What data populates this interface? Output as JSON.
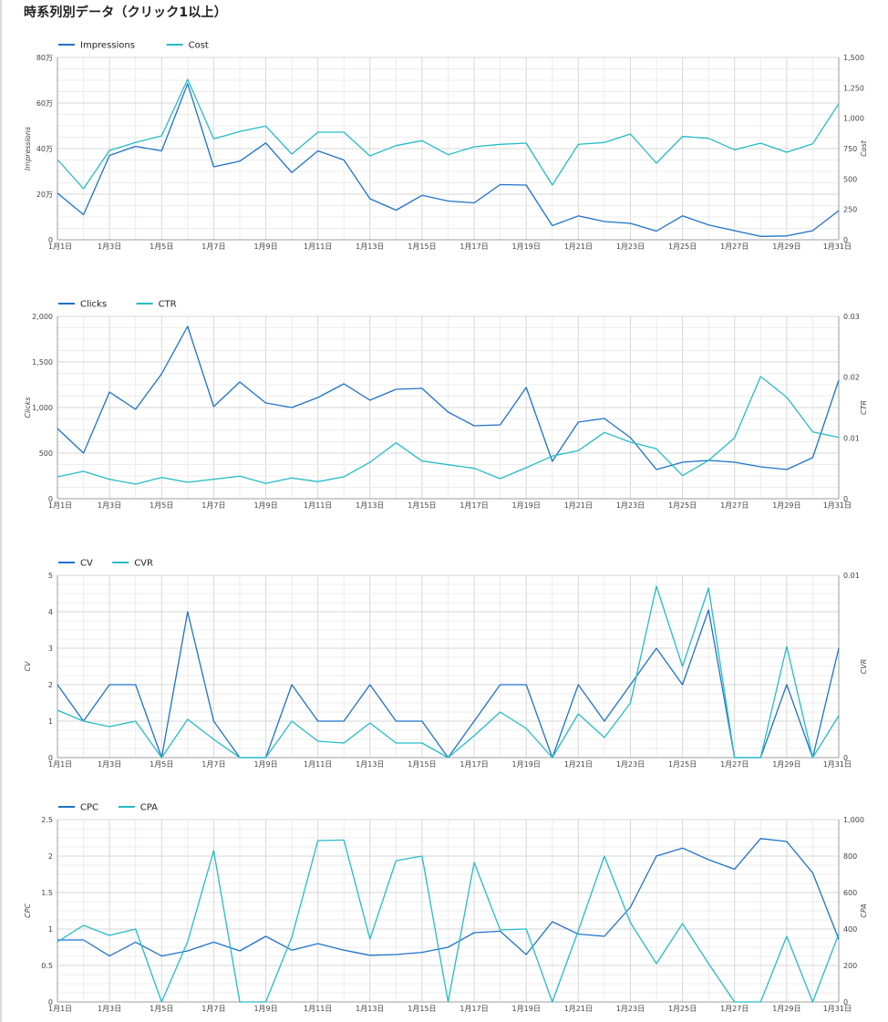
{
  "page": {
    "title": "時系列別データ（クリック1以上）"
  },
  "colors": {
    "series1": "#1f72c9",
    "series2": "#26bcc7",
    "grid_major": "#d7d7d7",
    "grid_minor": "#ececec",
    "axis": "#9e9e9e"
  },
  "chart_data": [
    {
      "type": "line",
      "x": [
        "1月1日",
        "1月2日",
        "1月3日",
        "1月4日",
        "1月5日",
        "1月6日",
        "1月7日",
        "1月8日",
        "1月9日",
        "1月10日",
        "1月11日",
        "1月12日",
        "1月13日",
        "1月14日",
        "1月15日",
        "1月16日",
        "1月17日",
        "1月18日",
        "1月19日",
        "1月20日",
        "1月21日",
        "1月22日",
        "1月23日",
        "1月24日",
        "1月25日",
        "1月26日",
        "1月27日",
        "1月28日",
        "1月29日",
        "1月30日",
        "1月31日"
      ],
      "x_tick_labels": [
        "1月1日",
        "1月3日",
        "1月5日",
        "1月7日",
        "1月9日",
        "1月11日",
        "1月13日",
        "1月15日",
        "1月17日",
        "1月19日",
        "1月21日",
        "1月23日",
        "1月25日",
        "1月27日",
        "1月29日",
        "1月31日"
      ],
      "left_axis": {
        "label": "Impressions",
        "range": [
          0,
          800000
        ],
        "tick_labels": [
          "0",
          "20万",
          "40万",
          "60万",
          "80万"
        ]
      },
      "right_axis": {
        "label": "Cost",
        "range": [
          0,
          1500
        ],
        "tick_labels": [
          "0",
          "250",
          "500",
          "750",
          "1,000",
          "1,250",
          "1,500"
        ]
      },
      "series": [
        {
          "name": "Impressions",
          "axis": "left",
          "color_key": "series1",
          "values": [
            205000,
            110000,
            370000,
            410000,
            390000,
            685000,
            320000,
            345000,
            425000,
            295000,
            390000,
            350000,
            180000,
            130000,
            195000,
            170000,
            162000,
            242000,
            240000,
            62000,
            105000,
            80000,
            72000,
            38000,
            105000,
            65000,
            40000,
            15000,
            17000,
            40000,
            128000
          ]
        },
        {
          "name": "Cost",
          "axis": "right",
          "color_key": "series2",
          "values": [
            660,
            420,
            735,
            800,
            855,
            1320,
            830,
            890,
            935,
            705,
            885,
            885,
            690,
            775,
            815,
            700,
            765,
            785,
            795,
            450,
            785,
            800,
            870,
            630,
            850,
            835,
            740,
            795,
            720,
            790,
            1120
          ]
        }
      ]
    },
    {
      "type": "line",
      "x": [
        "1月1日",
        "1月2日",
        "1月3日",
        "1月4日",
        "1月5日",
        "1月6日",
        "1月7日",
        "1月8日",
        "1月9日",
        "1月10日",
        "1月11日",
        "1月12日",
        "1月13日",
        "1月14日",
        "1月15日",
        "1月16日",
        "1月17日",
        "1月18日",
        "1月19日",
        "1月20日",
        "1月21日",
        "1月22日",
        "1月23日",
        "1月24日",
        "1月25日",
        "1月26日",
        "1月27日",
        "1月28日",
        "1月29日",
        "1月30日",
        "1月31日"
      ],
      "x_tick_labels": [
        "1月1日",
        "1月3日",
        "1月5日",
        "1月7日",
        "1月9日",
        "1月11日",
        "1月13日",
        "1月15日",
        "1月17日",
        "1月19日",
        "1月21日",
        "1月23日",
        "1月25日",
        "1月27日",
        "1月29日",
        "1月31日"
      ],
      "left_axis": {
        "label": "Clicks",
        "range": [
          0,
          2000
        ],
        "tick_labels": [
          "0",
          "500",
          "1,000",
          "1,500",
          "2,000"
        ]
      },
      "right_axis": {
        "label": "CTR",
        "range": [
          0,
          0.03
        ],
        "tick_labels": [
          "0",
          "0.01",
          "0.02",
          "0.03"
        ]
      },
      "series": [
        {
          "name": "Clicks",
          "axis": "left",
          "color_key": "series1",
          "values": [
            770,
            500,
            1170,
            980,
            1370,
            1890,
            1010,
            1280,
            1050,
            1000,
            1110,
            1260,
            1080,
            1200,
            1210,
            950,
            800,
            810,
            1220,
            410,
            840,
            880,
            670,
            320,
            400,
            420,
            400,
            350,
            320,
            450,
            1300
          ]
        },
        {
          "name": "CTR",
          "axis": "right",
          "color_key": "series2",
          "values": [
            0.0036,
            0.0045,
            0.0032,
            0.0024,
            0.0035,
            0.0027,
            0.0032,
            0.0037,
            0.0025,
            0.0034,
            0.0028,
            0.0036,
            0.006,
            0.0092,
            0.0062,
            0.0056,
            0.005,
            0.0033,
            0.0051,
            0.007,
            0.0079,
            0.0109,
            0.0093,
            0.0082,
            0.0038,
            0.0063,
            0.01,
            0.0201,
            0.0167,
            0.011,
            0.0101
          ]
        }
      ]
    },
    {
      "type": "line",
      "x": [
        "1月1日",
        "1月2日",
        "1月3日",
        "1月4日",
        "1月5日",
        "1月6日",
        "1月7日",
        "1月8日",
        "1月9日",
        "1月10日",
        "1月11日",
        "1月12日",
        "1月13日",
        "1月14日",
        "1月15日",
        "1月16日",
        "1月17日",
        "1月18日",
        "1月19日",
        "1月20日",
        "1月21日",
        "1月22日",
        "1月23日",
        "1月24日",
        "1月25日",
        "1月26日",
        "1月27日",
        "1月28日",
        "1月29日",
        "1月30日",
        "1月31日"
      ],
      "x_tick_labels": [
        "1月1日",
        "1月3日",
        "1月5日",
        "1月7日",
        "1月9日",
        "1月11日",
        "1月13日",
        "1月15日",
        "1月17日",
        "1月19日",
        "1月21日",
        "1月23日",
        "1月25日",
        "1月27日",
        "1月29日",
        "1月31日"
      ],
      "left_axis": {
        "label": "CV",
        "range": [
          0,
          5
        ],
        "tick_labels": [
          "0",
          "1",
          "2",
          "3",
          "4",
          "5"
        ]
      },
      "right_axis": {
        "label": "CVR",
        "range": [
          0,
          0.01
        ],
        "tick_labels": [
          "0",
          "0.01"
        ]
      },
      "series": [
        {
          "name": "CV",
          "axis": "left",
          "color_key": "series1",
          "values": [
            2,
            1,
            2,
            2,
            0,
            4,
            1,
            0,
            0,
            2,
            1,
            1,
            2,
            1,
            1,
            0,
            1,
            2,
            2,
            0,
            2,
            1,
            2,
            3,
            2,
            4.05,
            0,
            0,
            2,
            0,
            3
          ]
        },
        {
          "name": "CVR",
          "axis": "right",
          "color_key": "series2",
          "values": [
            0.0026,
            0.002,
            0.0017,
            0.002,
            0,
            0.0021,
            0.001,
            0,
            0,
            0.002,
            0.0009,
            0.0008,
            0.0019,
            0.0008,
            0.0008,
            0,
            0.0012,
            0.0025,
            0.0016,
            0,
            0.0024,
            0.0011,
            0.003,
            0.0094,
            0.005,
            0.0093,
            0,
            0,
            0.0061,
            0,
            0.0023
          ]
        }
      ]
    },
    {
      "type": "line",
      "x": [
        "1月1日",
        "1月2日",
        "1月3日",
        "1月4日",
        "1月5日",
        "1月6日",
        "1月7日",
        "1月8日",
        "1月9日",
        "1月10日",
        "1月11日",
        "1月12日",
        "1月13日",
        "1月14日",
        "1月15日",
        "1月16日",
        "1月17日",
        "1月18日",
        "1月19日",
        "1月20日",
        "1月21日",
        "1月22日",
        "1月23日",
        "1月24日",
        "1月25日",
        "1月26日",
        "1月27日",
        "1月28日",
        "1月29日",
        "1月30日",
        "1月31日"
      ],
      "x_tick_labels": [
        "1月1日",
        "1月3日",
        "1月5日",
        "1月7日",
        "1月9日",
        "1月11日",
        "1月13日",
        "1月15日",
        "1月17日",
        "1月19日",
        "1月21日",
        "1月23日",
        "1月25日",
        "1月27日",
        "1月29日",
        "1月31日"
      ],
      "left_axis": {
        "label": "CPC",
        "range": [
          0,
          2.5
        ],
        "tick_labels": [
          "0",
          "0.5",
          "1",
          "1.5",
          "2",
          "2.5"
        ]
      },
      "right_axis": {
        "label": "CPA",
        "range": [
          0,
          1000
        ],
        "tick_labels": [
          "0",
          "200",
          "400",
          "600",
          "800",
          "1,000"
        ]
      },
      "series": [
        {
          "name": "CPC",
          "axis": "left",
          "color_key": "series1",
          "values": [
            0.85,
            0.85,
            0.63,
            0.82,
            0.63,
            0.7,
            0.82,
            0.7,
            0.9,
            0.71,
            0.8,
            0.71,
            0.64,
            0.65,
            0.68,
            0.75,
            0.95,
            0.97,
            0.65,
            1.1,
            0.93,
            0.9,
            1.3,
            2.0,
            2.11,
            1.95,
            1.82,
            2.24,
            2.2,
            1.77,
            0.86
          ]
        },
        {
          "name": "CPA",
          "axis": "right",
          "color_key": "series2",
          "values": [
            330,
            420,
            365,
            400,
            0,
            330,
            830,
            0,
            0,
            355,
            885,
            888,
            345,
            775,
            800,
            0,
            765,
            395,
            400,
            0,
            390,
            800,
            435,
            210,
            430,
            210,
            0,
            0,
            360,
            0,
            373
          ]
        }
      ]
    }
  ]
}
